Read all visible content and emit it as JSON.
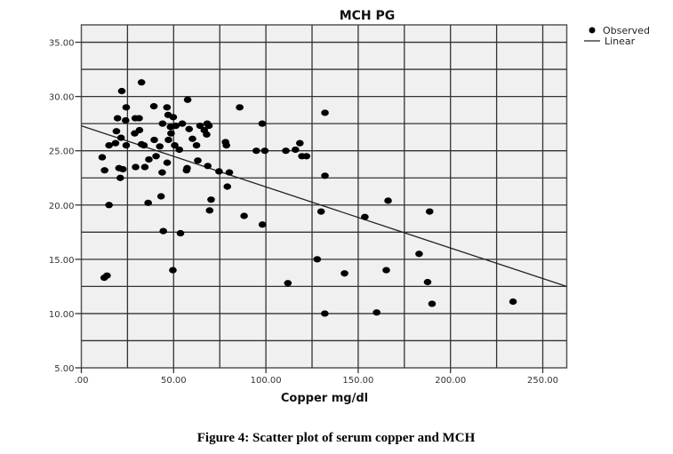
{
  "chart_data": {
    "type": "scatter",
    "title": "MCH PG",
    "xlabel": "Copper mg/dl",
    "ylabel": "",
    "caption": "Figure 4: Scatter plot of serum copper and MCH",
    "xlim": [
      0,
      263
    ],
    "ylim": [
      5,
      36.6
    ],
    "x_ticks": [
      0,
      50,
      100,
      150,
      200,
      250
    ],
    "x_tick_labels": [
      ".00",
      "50.00",
      "100.00",
      "150.00",
      "200.00",
      "250.00"
    ],
    "y_ticks": [
      5,
      10,
      15,
      20,
      25,
      30,
      35
    ],
    "y_tick_labels": [
      "5.00",
      "10.00",
      "15.00",
      "20.00",
      "25.00",
      "30.00",
      "35.00"
    ],
    "grid": true,
    "x_grid_step": 25,
    "y_grid_step": 2.5,
    "legend": {
      "position": "top-right",
      "entries": [
        "Observed",
        "Linear"
      ]
    },
    "colors": {
      "points": "#000000",
      "line": "#222222",
      "plot_bg": "#f0f0f0",
      "grid": "#333333"
    },
    "series": [
      {
        "name": "Observed",
        "points": [
          [
            11.3,
            24.4
          ],
          [
            12.6,
            23.2
          ],
          [
            15,
            20.0
          ],
          [
            15,
            25.5
          ],
          [
            18.5,
            25.7
          ],
          [
            19,
            26.8
          ],
          [
            19.6,
            28.0
          ],
          [
            21.9,
            30.5
          ],
          [
            21.5,
            26.2
          ],
          [
            20.4,
            23.4
          ],
          [
            22.5,
            23.3
          ],
          [
            21.1,
            22.5
          ],
          [
            24.3,
            29.0
          ],
          [
            24,
            27.8
          ],
          [
            24.3,
            25.5
          ],
          [
            29.2,
            28.0
          ],
          [
            31.3,
            28.0
          ],
          [
            28.9,
            26.6
          ],
          [
            31.5,
            26.9
          ],
          [
            32.6,
            31.3
          ],
          [
            32.6,
            25.6
          ],
          [
            33.9,
            25.5
          ],
          [
            29.4,
            23.5
          ],
          [
            34.4,
            23.5
          ],
          [
            36.2,
            20.2
          ],
          [
            36.6,
            24.2
          ],
          [
            39.3,
            29.1
          ],
          [
            39.5,
            26.0
          ],
          [
            40.5,
            24.5
          ],
          [
            42.5,
            25.4
          ],
          [
            44,
            27.5
          ],
          [
            43.8,
            23.0
          ],
          [
            43.2,
            20.8
          ],
          [
            46.4,
            29.0
          ],
          [
            47,
            28.3
          ],
          [
            49.8,
            28.1
          ],
          [
            46.5,
            23.9
          ],
          [
            47.2,
            26.0
          ],
          [
            48.3,
            27.2
          ],
          [
            51.2,
            27.3
          ],
          [
            48.6,
            26.6
          ],
          [
            50.6,
            25.5
          ],
          [
            53.1,
            25.1
          ],
          [
            54.7,
            27.5
          ],
          [
            57.3,
            23.4
          ],
          [
            57,
            23.2
          ],
          [
            57.6,
            29.7
          ],
          [
            58.4,
            27.0
          ],
          [
            60.2,
            26.1
          ],
          [
            62.4,
            25.5
          ],
          [
            63.1,
            24.1
          ],
          [
            64.3,
            27.3
          ],
          [
            66.6,
            26.9
          ],
          [
            68.2,
            27.5
          ],
          [
            69.1,
            27.3
          ],
          [
            67.9,
            26.5
          ],
          [
            68.5,
            23.6
          ],
          [
            70.3,
            20.5
          ],
          [
            69.5,
            19.5
          ],
          [
            74.6,
            23.1
          ],
          [
            80.2,
            23.0
          ],
          [
            78.1,
            25.8
          ],
          [
            78.6,
            25.5
          ],
          [
            79.1,
            21.7
          ],
          [
            85.8,
            29.0
          ],
          [
            88.2,
            19.0
          ],
          [
            94.8,
            25.0
          ],
          [
            99.4,
            25.0
          ],
          [
            98,
            27.5
          ],
          [
            98.1,
            18.2
          ],
          [
            110.8,
            25.0
          ],
          [
            116,
            25.1
          ],
          [
            118.4,
            25.7
          ],
          [
            119.5,
            24.5
          ],
          [
            122,
            24.5
          ],
          [
            132,
            28.5
          ],
          [
            132,
            22.7
          ],
          [
            129.9,
            19.4
          ],
          [
            44.4,
            17.6
          ],
          [
            53.7,
            17.4
          ],
          [
            12.4,
            13.3
          ],
          [
            13.9,
            13.5
          ],
          [
            49.6,
            14.0
          ],
          [
            127.8,
            15.0
          ],
          [
            111.9,
            12.8
          ],
          [
            142.6,
            13.7
          ],
          [
            131.9,
            10.0
          ],
          [
            160,
            10.1
          ],
          [
            165.2,
            14.0
          ],
          [
            183,
            15.5
          ],
          [
            187.6,
            12.9
          ],
          [
            190,
            10.9
          ],
          [
            233.9,
            11.1
          ],
          [
            166.2,
            20.4
          ],
          [
            153.6,
            18.9
          ],
          [
            188.7,
            19.4
          ]
        ]
      },
      {
        "name": "Linear",
        "intercept": 27.3,
        "slope": -0.0563
      }
    ]
  }
}
